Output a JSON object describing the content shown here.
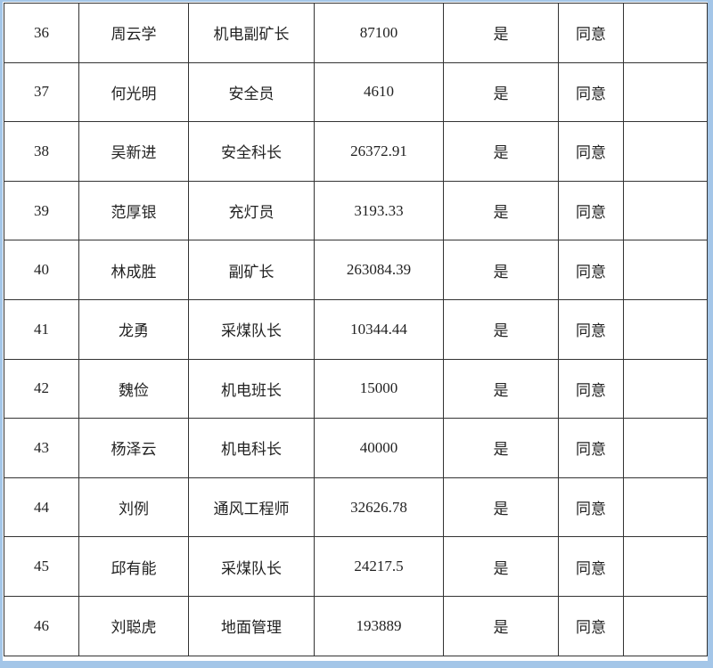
{
  "table": {
    "rows": [
      {
        "no": "36",
        "name": "周云学",
        "position": "机电副矿长",
        "amount": "87100",
        "flag": "是",
        "opinion": "同意",
        "remark": ""
      },
      {
        "no": "37",
        "name": "何光明",
        "position": "安全员",
        "amount": "4610",
        "flag": "是",
        "opinion": "同意",
        "remark": ""
      },
      {
        "no": "38",
        "name": "吴新进",
        "position": "安全科长",
        "amount": "26372.91",
        "flag": "是",
        "opinion": "同意",
        "remark": ""
      },
      {
        "no": "39",
        "name": "范厚银",
        "position": "充灯员",
        "amount": "3193.33",
        "flag": "是",
        "opinion": "同意",
        "remark": ""
      },
      {
        "no": "40",
        "name": "林成胜",
        "position": "副矿长",
        "amount": "263084.39",
        "flag": "是",
        "opinion": "同意",
        "remark": ""
      },
      {
        "no": "41",
        "name": "龙勇",
        "position": "采煤队长",
        "amount": "10344.44",
        "flag": "是",
        "opinion": "同意",
        "remark": ""
      },
      {
        "no": "42",
        "name": "魏俭",
        "position": "机电班长",
        "amount": "15000",
        "flag": "是",
        "opinion": "同意",
        "remark": ""
      },
      {
        "no": "43",
        "name": "杨泽云",
        "position": "机电科长",
        "amount": "40000",
        "flag": "是",
        "opinion": "同意",
        "remark": ""
      },
      {
        "no": "44",
        "name": "刘例",
        "position": "通风工程师",
        "amount": "32626.78",
        "flag": "是",
        "opinion": "同意",
        "remark": ""
      },
      {
        "no": "45",
        "name": "邱有能",
        "position": "采煤队长",
        "amount": "24217.5",
        "flag": "是",
        "opinion": "同意",
        "remark": ""
      },
      {
        "no": "46",
        "name": "刘聪虎",
        "position": "地面管理",
        "amount": "193889",
        "flag": "是",
        "opinion": "同意",
        "remark": ""
      }
    ]
  }
}
